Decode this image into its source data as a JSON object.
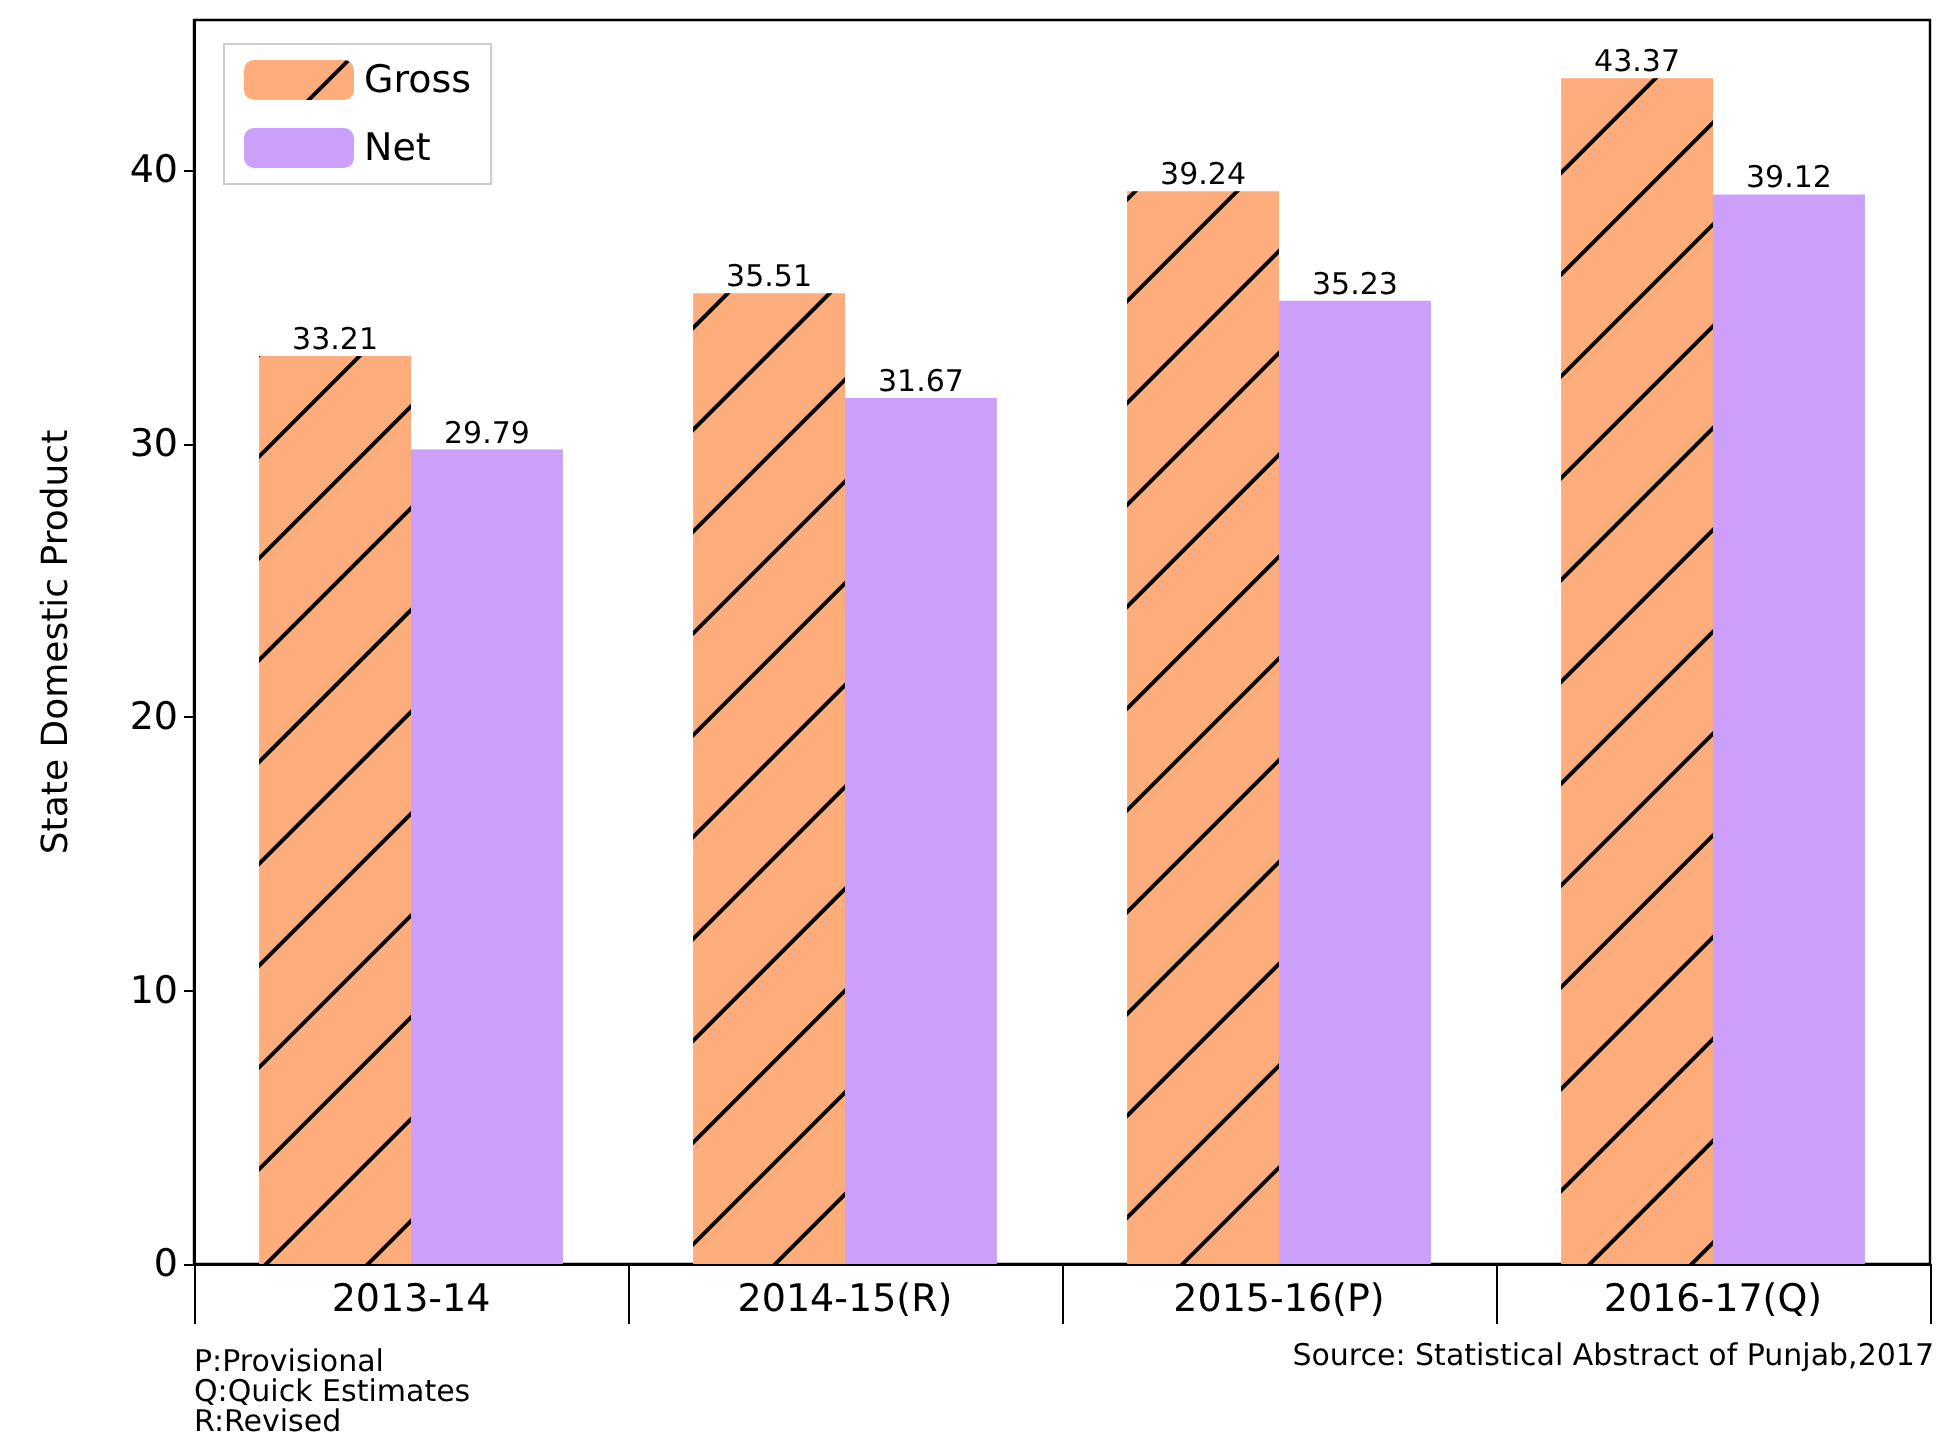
{
  "chart_data": {
    "type": "bar",
    "ylabel": "State Domestic Product",
    "categories": [
      "2013-14",
      "2014-15(R)",
      "2015-16(P)",
      "2016-17(Q)"
    ],
    "series": [
      {
        "name": "Gross",
        "color": "#fdad7b",
        "values": [
          33.21,
          35.51,
          39.24,
          43.37
        ]
      },
      {
        "name": "Net",
        "color": "#cb9ffa",
        "values": [
          29.79,
          31.67,
          35.23,
          39.12
        ]
      }
    ],
    "ylim": [
      0,
      45.5
    ],
    "yticks": [
      0,
      10,
      20,
      30,
      40
    ],
    "grid": false,
    "legend": "top left",
    "data_labels": true,
    "annotations": [
      "P:Provisional",
      "Q:Quick Estimates",
      "R:Revised",
      "Source: Statistical Abstract of Punjab,2017"
    ]
  }
}
